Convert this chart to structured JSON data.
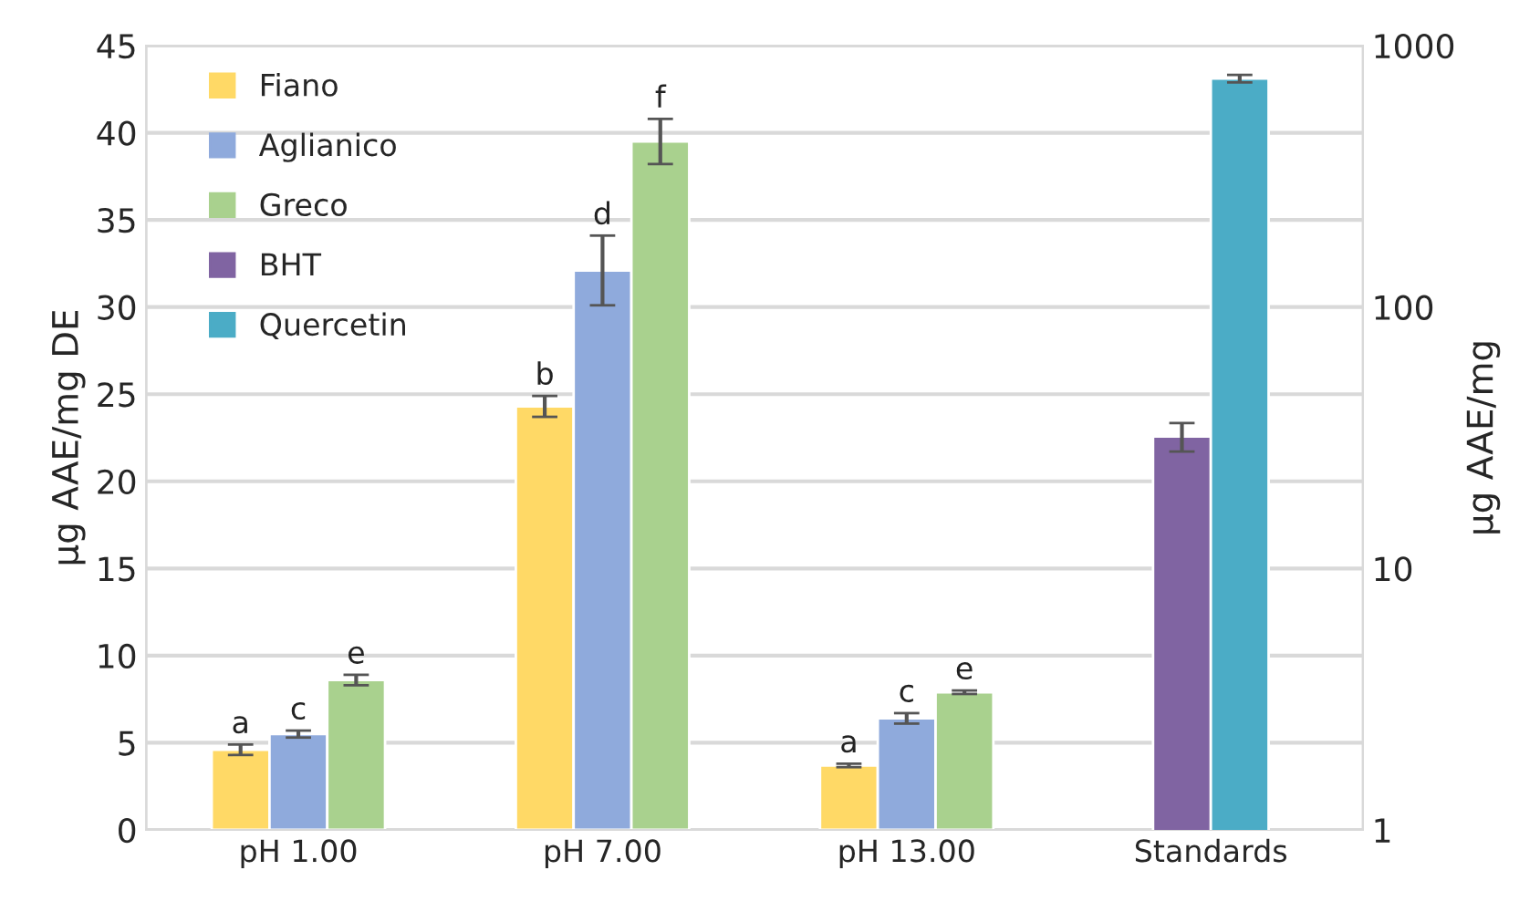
{
  "chart_data": {
    "type": "bar",
    "ylabel": "µg AAE/mg DE",
    "y2label": "µg AAE/mg",
    "categories": [
      "pH 1.00",
      "pH 7.00",
      "pH 13.00",
      "Standards"
    ],
    "series": [
      {
        "name": "Fiano",
        "color": "#ffd966",
        "values": [
          4.6,
          24.3,
          3.7,
          null
        ],
        "errors": [
          0.3,
          0.6,
          0.1,
          null
        ],
        "value_labels": [
          "a",
          "b",
          "a",
          null
        ]
      },
      {
        "name": "Aglianico",
        "color": "#8faadc",
        "values": [
          5.5,
          32.1,
          6.4,
          null
        ],
        "errors": [
          0.2,
          2.0,
          0.3,
          null
        ],
        "value_labels": [
          "c",
          "d",
          "c",
          null
        ]
      },
      {
        "name": "Greco",
        "color": "#a9d18e",
        "values": [
          8.6,
          39.5,
          7.9,
          null
        ],
        "errors": [
          0.3,
          1.3,
          0.1,
          null
        ],
        "value_labels": [
          "e",
          "f",
          "e",
          null
        ]
      },
      {
        "name": "BHT",
        "color": "#8064a2",
        "axis": "y2",
        "values": [
          null,
          null,
          null,
          32
        ],
        "errors": [
          null,
          null,
          null,
          4
        ]
      },
      {
        "name": "Quercetin",
        "color": "#4bacc6",
        "axis": "y2",
        "values": [
          null,
          null,
          null,
          748
        ],
        "errors": [
          null,
          null,
          null,
          25
        ]
      }
    ],
    "ylim": [
      0,
      45
    ],
    "yticks": [
      0,
      5,
      10,
      15,
      20,
      25,
      30,
      35,
      40,
      45
    ],
    "y2lim": [
      1,
      1000
    ],
    "y2ticks": [
      1,
      10,
      100,
      1000
    ],
    "log": "y2",
    "grid": "y",
    "legend": "top left"
  }
}
